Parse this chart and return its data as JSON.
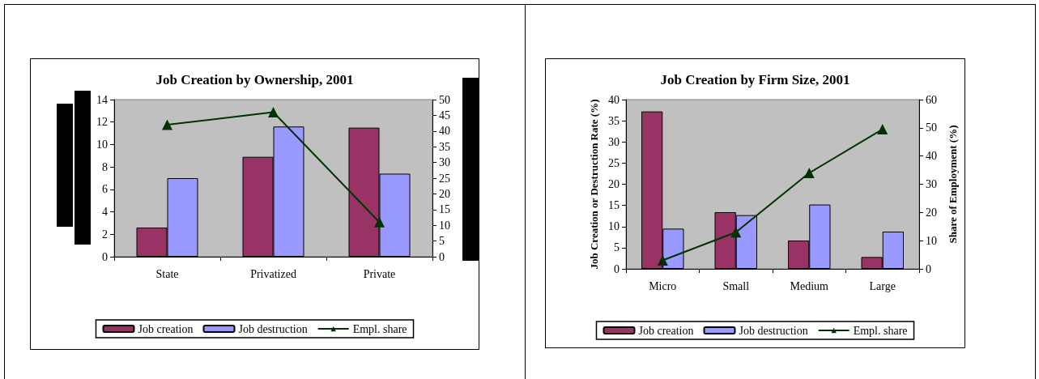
{
  "chart_data": [
    {
      "type": "bar",
      "title": "Job Creation by Ownership, 2001",
      "categories": [
        "State",
        "Privatized",
        "Private"
      ],
      "series": [
        {
          "name": "Job creation",
          "color": "#993366",
          "values": [
            2.6,
            8.9,
            11.5
          ]
        },
        {
          "name": "Job destruction",
          "color": "#9999ff",
          "values": [
            7.0,
            11.6,
            7.4
          ]
        },
        {
          "name": "Empl. share",
          "color": "#003300",
          "type": "line",
          "axis": "y2",
          "values": [
            42,
            46,
            11
          ]
        }
      ],
      "ylim": [
        0,
        14
      ],
      "yticks": [
        0,
        2,
        4,
        6,
        8,
        10,
        12,
        14
      ],
      "y2lim": [
        0,
        50
      ],
      "y2ticks": [
        0,
        5,
        10,
        15,
        20,
        25,
        30,
        35,
        40,
        45,
        50
      ],
      "grid": false,
      "legend": "bottom",
      "marker": "triangle",
      "line_style": "solid"
    },
    {
      "type": "bar",
      "title": "Job Creation by Firm Size, 2001",
      "categories": [
        "Micro",
        "Small",
        "Medium",
        "Large"
      ],
      "ylabel": "Job Creation or Destruction Rate (%)",
      "y2label": "Share of Employment (%)",
      "series": [
        {
          "name": "Job creation",
          "color": "#993366",
          "values": [
            37.2,
            13.4,
            6.7,
            2.8
          ]
        },
        {
          "name": "Job destruction",
          "color": "#9999ff",
          "values": [
            9.5,
            12.7,
            15.2,
            8.8
          ]
        },
        {
          "name": "Empl. share",
          "color": "#003300",
          "type": "line",
          "axis": "y2",
          "values": [
            3,
            13,
            34,
            49.5
          ]
        }
      ],
      "ylim": [
        0,
        40
      ],
      "yticks": [
        0,
        5,
        10,
        15,
        20,
        25,
        30,
        35,
        40
      ],
      "y2lim": [
        0,
        60
      ],
      "y2ticks": [
        0,
        10,
        20,
        30,
        40,
        50,
        60
      ],
      "grid": false,
      "legend": "bottom",
      "marker": "triangle",
      "line_style": "solid"
    }
  ]
}
